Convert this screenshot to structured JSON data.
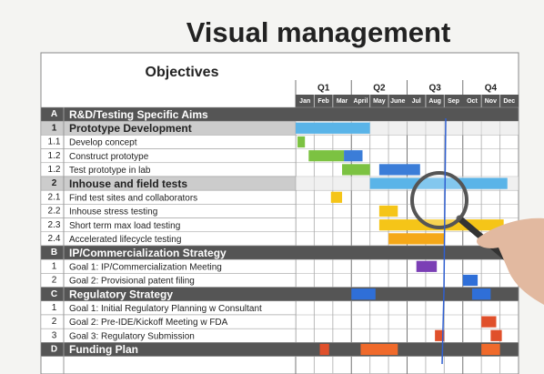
{
  "title": "Visual management",
  "table": {
    "header": "Objectives",
    "quarters": [
      "Q1",
      "Q2",
      "Q3",
      "Q4"
    ],
    "months": [
      "Jan",
      "Feb",
      "Mar",
      "April",
      "May",
      "June",
      "Jul",
      "Aug",
      "Sep",
      "Oct",
      "Nov",
      "Dec"
    ],
    "rows": [
      {
        "id": "A",
        "label": "R&D/Testing Specific Aims",
        "kind": "section"
      },
      {
        "id": "1",
        "label": "Prototype Development",
        "kind": "group"
      },
      {
        "id": "1.1",
        "label": "Develop concept",
        "kind": "task"
      },
      {
        "id": "1.2",
        "label": "Construct prototype",
        "kind": "task"
      },
      {
        "id": "1.2",
        "label": "Test prototype in lab",
        "kind": "task"
      },
      {
        "id": "2",
        "label": "Inhouse and field tests",
        "kind": "group"
      },
      {
        "id": "2.1",
        "label": "Find test sites and collaborators",
        "kind": "task"
      },
      {
        "id": "2.2",
        "label": "Inhouse stress testing",
        "kind": "task"
      },
      {
        "id": "2.3",
        "label": "Short term max load testing",
        "kind": "task"
      },
      {
        "id": "2.4",
        "label": "Accelerated lifecycle testing",
        "kind": "task"
      },
      {
        "id": "B",
        "label": "IP/Commercialization Strategy",
        "kind": "section"
      },
      {
        "id": "1",
        "label": "Goal 1: IP/Commercialization Meeting",
        "kind": "task"
      },
      {
        "id": "2",
        "label": "Goal 2: Provisional patent filing",
        "kind": "task"
      },
      {
        "id": "C",
        "label": "Regulatory Strategy",
        "kind": "section"
      },
      {
        "id": "1",
        "label": "Goal 1: Initial Regulatory Planning w Consultant",
        "kind": "task"
      },
      {
        "id": "2",
        "label": "Goal 2: Pre-IDE/Kickoff Meeting w FDA",
        "kind": "task"
      },
      {
        "id": "3",
        "label": "Goal 3: Regulatory Submission",
        "kind": "task"
      },
      {
        "id": "D",
        "label": "Funding Plan",
        "kind": "section"
      }
    ]
  }
}
